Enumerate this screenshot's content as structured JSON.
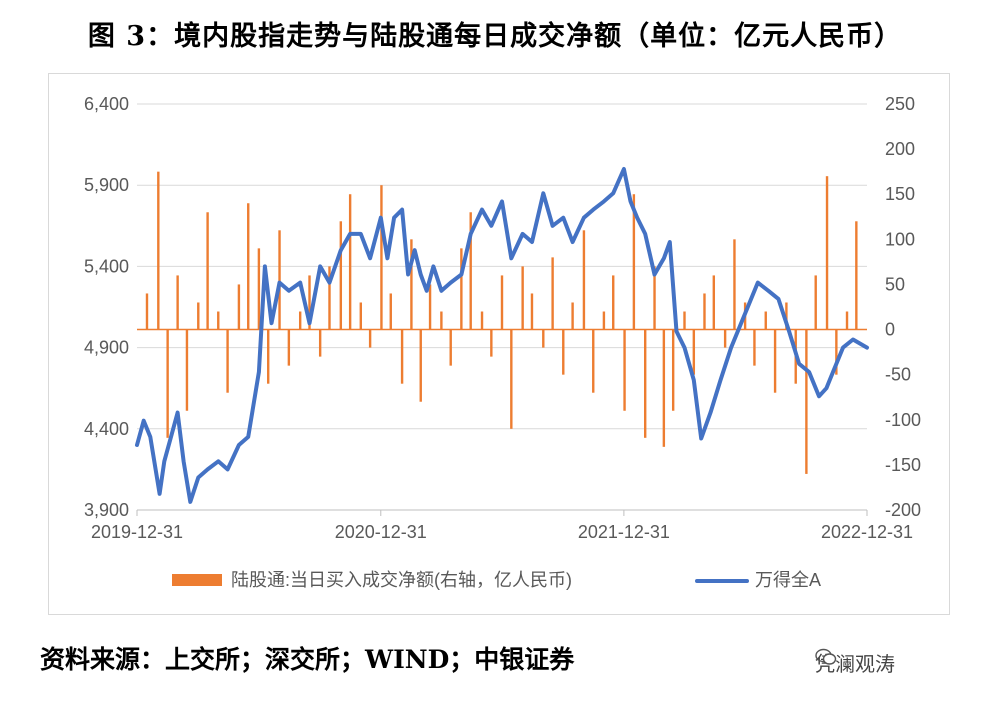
{
  "title": "图 3：境内股指走势与陆股通每日成交净额（单位：亿元人民币）",
  "source": "资料来源：上交所；深交所；WIND；中银证券",
  "watermark": {
    "text": "凭澜观涛",
    "icon": "wechat-icon"
  },
  "colors": {
    "line": "#4472C4",
    "bar": "#ED7D31",
    "grid": "#d9d9d9",
    "axis_text": "#595959"
  },
  "chart_data": {
    "type": "line",
    "xlabel": "",
    "ylabel": "",
    "x_ticks": [
      "2019-12-31",
      "2020-12-31",
      "2021-12-31",
      "2022-12-31"
    ],
    "y_left": {
      "lim": [
        3900,
        6400
      ],
      "ticks": [
        "6,400",
        "5,900",
        "5,400",
        "4,900",
        "4,400",
        "3,900"
      ]
    },
    "y_right": {
      "lim": [
        -200,
        250
      ],
      "ticks": [
        "250",
        "200",
        "150",
        "100",
        "50",
        "0",
        "-50",
        "-100",
        "-150",
        "-200"
      ]
    },
    "legend": {
      "position": "bottom"
    },
    "series": [
      {
        "name": "陆股通:当日买入成交净额(右轴，亿人民币)",
        "type": "bar",
        "axis": "right",
        "x": [
          "2020-01-15",
          "2020-02-01",
          "2020-02-15",
          "2020-03-01",
          "2020-03-15",
          "2020-04-01",
          "2020-04-15",
          "2020-05-01",
          "2020-05-15",
          "2020-06-01",
          "2020-06-15",
          "2020-07-01",
          "2020-07-15",
          "2020-08-01",
          "2020-08-15",
          "2020-09-01",
          "2020-09-15",
          "2020-10-01",
          "2020-10-15",
          "2020-11-01",
          "2020-11-15",
          "2020-12-01",
          "2020-12-15",
          "2021-01-01",
          "2021-01-15",
          "2021-02-01",
          "2021-02-15",
          "2021-03-01",
          "2021-03-15",
          "2021-04-01",
          "2021-04-15",
          "2021-05-01",
          "2021-05-15",
          "2021-06-01",
          "2021-06-15",
          "2021-07-01",
          "2021-07-15",
          "2021-08-01",
          "2021-08-15",
          "2021-09-01",
          "2021-09-15",
          "2021-10-01",
          "2021-10-15",
          "2021-11-01",
          "2021-11-15",
          "2021-12-01",
          "2021-12-15",
          "2022-01-01",
          "2022-01-15",
          "2022-02-01",
          "2022-02-15",
          "2022-03-01",
          "2022-03-15",
          "2022-04-01",
          "2022-04-15",
          "2022-05-01",
          "2022-05-15",
          "2022-06-01",
          "2022-06-15",
          "2022-07-01",
          "2022-07-15",
          "2022-08-01",
          "2022-08-15",
          "2022-09-01",
          "2022-09-15",
          "2022-10-01",
          "2022-10-15",
          "2022-11-01",
          "2022-11-15",
          "2022-12-01",
          "2022-12-15"
        ],
        "values": [
          40,
          175,
          -120,
          60,
          -90,
          30,
          130,
          20,
          -70,
          50,
          140,
          90,
          -60,
          110,
          -40,
          20,
          60,
          -30,
          70,
          120,
          150,
          30,
          -20,
          160,
          40,
          -60,
          100,
          -80,
          50,
          20,
          -40,
          90,
          130,
          20,
          -30,
          60,
          -110,
          70,
          40,
          -20,
          80,
          -50,
          30,
          110,
          -70,
          20,
          60,
          -90,
          150,
          -120,
          70,
          -130,
          -90,
          20,
          -50,
          40,
          60,
          -20,
          100,
          30,
          -40,
          20,
          -70,
          30,
          -60,
          -160,
          60,
          170,
          -50,
          20,
          120
        ]
      },
      {
        "name": "万得全A",
        "type": "line",
        "axis": "left",
        "x": [
          "2019-12-31",
          "2020-01-10",
          "2020-01-20",
          "2020-02-03",
          "2020-02-10",
          "2020-02-20",
          "2020-03-01",
          "2020-03-10",
          "2020-03-20",
          "2020-04-01",
          "2020-04-15",
          "2020-05-01",
          "2020-05-15",
          "2020-06-01",
          "2020-06-15",
          "2020-07-01",
          "2020-07-10",
          "2020-07-20",
          "2020-08-01",
          "2020-08-15",
          "2020-09-01",
          "2020-09-15",
          "2020-10-01",
          "2020-10-15",
          "2020-11-01",
          "2020-11-15",
          "2020-12-01",
          "2020-12-15",
          "2020-12-31",
          "2021-01-10",
          "2021-01-20",
          "2021-02-01",
          "2021-02-10",
          "2021-02-20",
          "2021-03-01",
          "2021-03-10",
          "2021-03-20",
          "2021-04-01",
          "2021-04-15",
          "2021-05-01",
          "2021-05-15",
          "2021-06-01",
          "2021-06-15",
          "2021-07-01",
          "2021-07-15",
          "2021-08-01",
          "2021-08-15",
          "2021-09-01",
          "2021-09-15",
          "2021-10-01",
          "2021-10-15",
          "2021-11-01",
          "2021-11-15",
          "2021-12-01",
          "2021-12-15",
          "2021-12-31",
          "2022-01-10",
          "2022-01-20",
          "2022-02-01",
          "2022-02-15",
          "2022-03-01",
          "2022-03-10",
          "2022-03-20",
          "2022-04-01",
          "2022-04-15",
          "2022-04-26",
          "2022-05-10",
          "2022-05-25",
          "2022-06-10",
          "2022-06-25",
          "2022-07-05",
          "2022-07-20",
          "2022-08-05",
          "2022-08-20",
          "2022-09-05",
          "2022-09-20",
          "2022-10-05",
          "2022-10-20",
          "2022-10-31",
          "2022-11-10",
          "2022-11-25",
          "2022-12-10",
          "2022-12-31"
        ],
        "values": [
          4300,
          4450,
          4350,
          4000,
          4200,
          4350,
          4500,
          4200,
          3950,
          4100,
          4150,
          4200,
          4150,
          4300,
          4350,
          4750,
          5400,
          5050,
          5300,
          5250,
          5300,
          5050,
          5400,
          5300,
          5500,
          5600,
          5600,
          5450,
          5700,
          5450,
          5700,
          5750,
          5350,
          5500,
          5350,
          5250,
          5400,
          5250,
          5300,
          5350,
          5600,
          5750,
          5650,
          5800,
          5450,
          5600,
          5550,
          5850,
          5650,
          5700,
          5550,
          5700,
          5750,
          5800,
          5850,
          6000,
          5800,
          5700,
          5600,
          5350,
          5450,
          5550,
          5000,
          4900,
          4700,
          4340,
          4500,
          4700,
          4900,
          5050,
          5150,
          5300,
          5250,
          5200,
          5000,
          4800,
          4750,
          4600,
          4650,
          4750,
          4900,
          4950,
          4900
        ]
      }
    ]
  }
}
